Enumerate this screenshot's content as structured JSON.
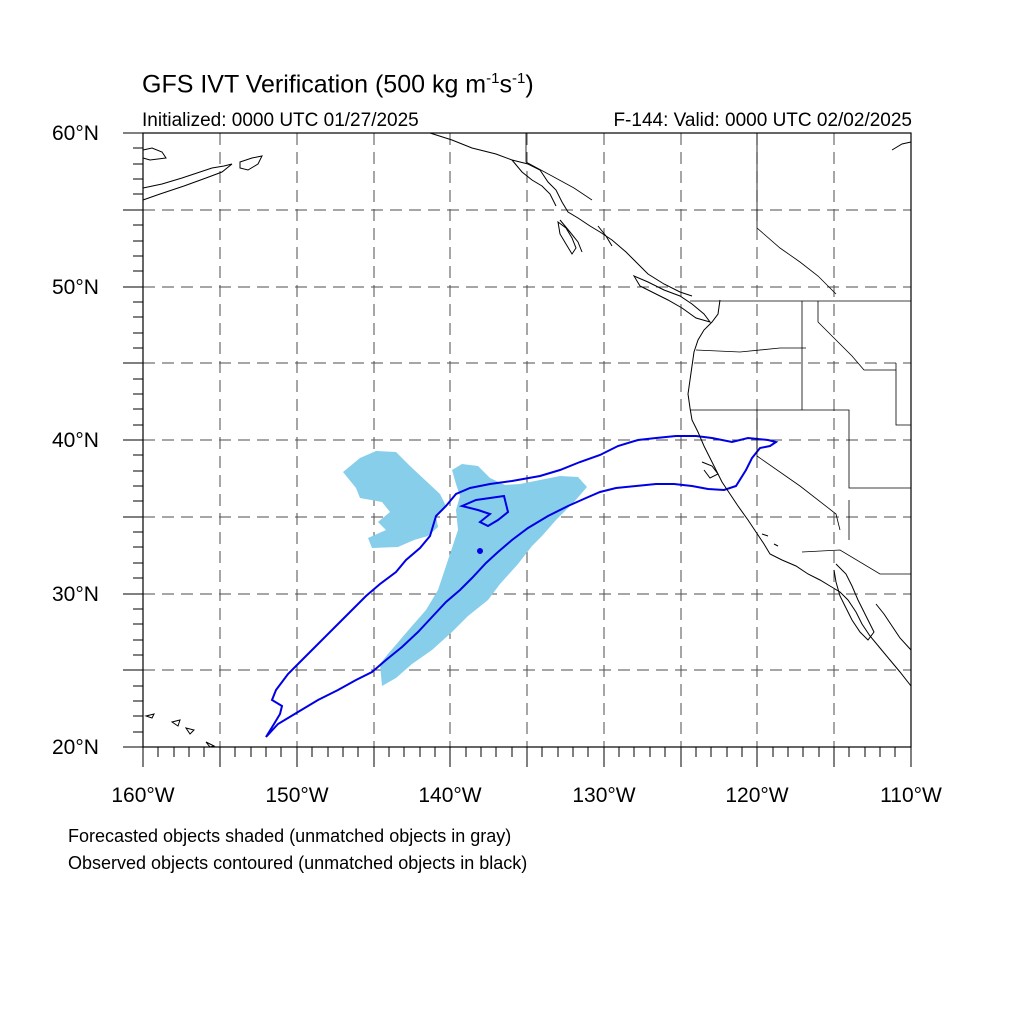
{
  "title_prefix": "GFS IVT Verification (500 kg m",
  "title_exp1": "-1",
  "title_mid": "s",
  "title_exp2": "-1",
  "title_suffix": ")",
  "initialized": "Initialized: 0000 UTC 01/27/2025",
  "valid": "F-144: Valid: 0000 UTC 02/02/2025",
  "lat_labels": [
    "60°N",
    "50°N",
    "40°N",
    "30°N",
    "20°N"
  ],
  "lon_labels": [
    "160°W",
    "150°W",
    "140°W",
    "130°W",
    "120°W",
    "110°W"
  ],
  "notes": [
    "Forecasted objects shaded (unmatched objects in gray)",
    "Observed objects contoured (unmatched objects in black)"
  ],
  "colors": {
    "forecast_fill": "#87ceeb",
    "observed_contour": "#0000e6",
    "coastline": "#000000",
    "grid": "#4d4d4d"
  }
}
